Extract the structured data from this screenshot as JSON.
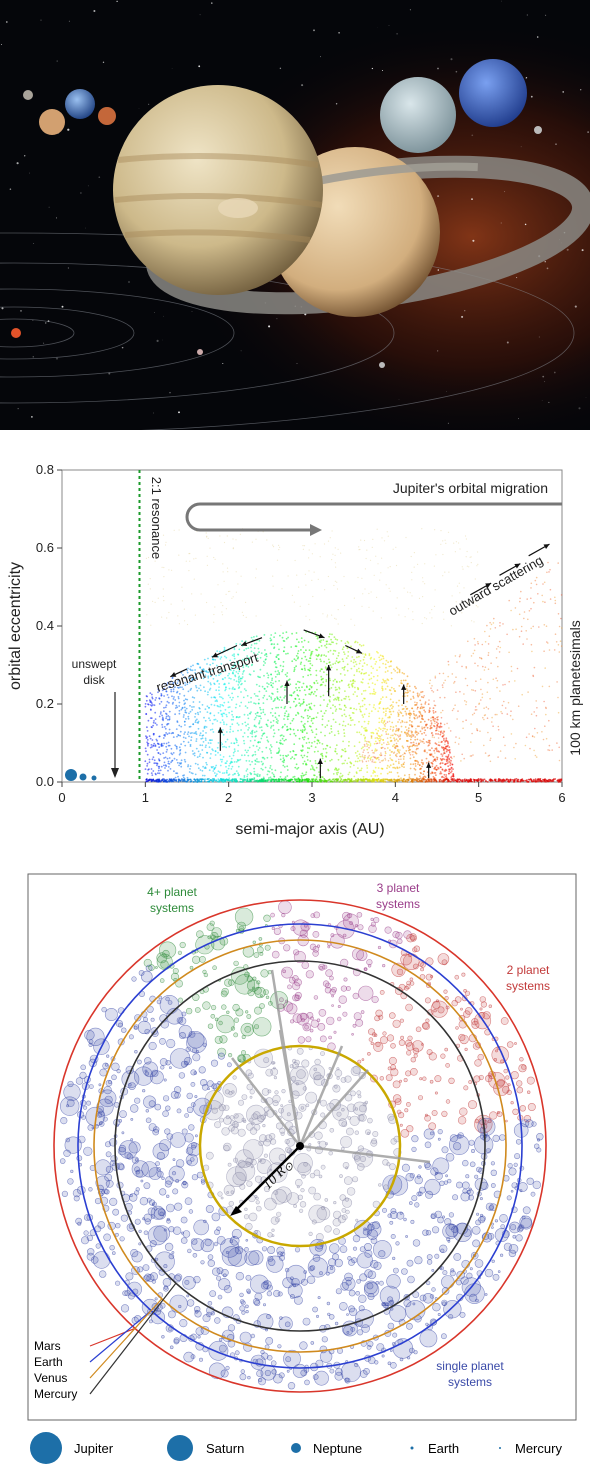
{
  "chart_data": [
    {
      "type": "scatter",
      "xlabel": "semi-major axis (AU)",
      "ylabel": "orbital eccentricity",
      "xlim": [
        0,
        6
      ],
      "ylim": [
        0,
        0.8
      ],
      "xticks": [
        "0",
        "1",
        "2",
        "3",
        "4",
        "5",
        "6"
      ],
      "yticks": [
        "0.0",
        "0.2",
        "0.4",
        "0.6",
        "0.8"
      ],
      "annotations": {
        "resonance": "2:1 resonance",
        "migration": "Jupiter's orbital migration",
        "unswept": [
          "unswept",
          "disk"
        ],
        "resonant": "resonant transport",
        "outward": "outward scattering",
        "planetesimals": "100 km planetesimals"
      },
      "resonance_x": 0.93,
      "arch_peak": {
        "x": 2.8,
        "y": 0.39
      },
      "arch_range": [
        1.0,
        4.7
      ],
      "unswept_disk_end": 0.7
    },
    {
      "type": "scatter",
      "sectors": [
        {
          "label": [
            "4+ planet",
            "systems"
          ],
          "color": "#2e8b3a"
        },
        {
          "label": [
            "3 planet",
            "systems"
          ],
          "color": "#9a3d8a"
        },
        {
          "label": [
            "2 planet",
            "systems"
          ],
          "color": "#c23a3a"
        },
        {
          "label": [
            "single planet",
            "systems"
          ],
          "color": "#3a4aa8"
        }
      ],
      "orbits": [
        {
          "name": "Mars",
          "color": "#d9362b"
        },
        {
          "name": "Earth",
          "color": "#2b3fd1"
        },
        {
          "name": "Venus",
          "color": "#d08a1e"
        },
        {
          "name": "Mercury",
          "color": "#333333"
        }
      ],
      "radius_label": "10 R",
      "radius_symbol": "⊙",
      "inner_circle_color": "#c9a800"
    }
  ],
  "legend": [
    {
      "name": "Jupiter"
    },
    {
      "name": "Saturn"
    },
    {
      "name": "Neptune"
    },
    {
      "name": "Earth"
    },
    {
      "name": "Mercury"
    }
  ]
}
